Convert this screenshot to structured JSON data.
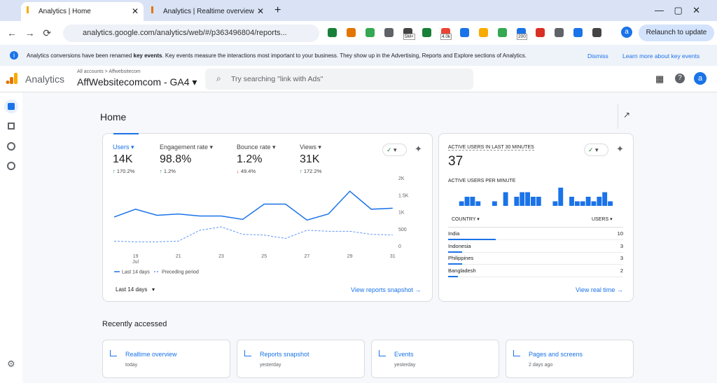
{
  "browser": {
    "tabs": [
      "Analytics | Home",
      "Analytics | Realtime overview"
    ],
    "url": "analytics.google.com/analytics/web/#/p363496804/reports...",
    "extension_badges": [
      "5M+",
      "4.0k",
      "200"
    ],
    "profile": "a",
    "relaunch": "Relaunch to update"
  },
  "banner": {
    "text_before": "Analytics conversions have been renamed ",
    "bold": "key events",
    "text_after": ". Key events measure the interactions most important to your business. They show up in the Advertising, Reports and Explore sections of Analytics.",
    "dismiss": "Dismiss",
    "learn_more": "Learn more about key events"
  },
  "header": {
    "app": "Analytics",
    "breadcrumb": "All accounts > Affwebsitecom",
    "property": "AffWebsitecomcom - GA4",
    "search_placeholder": "Try searching \"link with Ads\"",
    "profile": "a"
  },
  "page_title": "Home",
  "metrics": [
    {
      "name": "Users",
      "value": "14K",
      "change": "170.2%",
      "direction": "up"
    },
    {
      "name": "Engagement rate",
      "value": "98.8%",
      "change": "1.2%",
      "direction": "up"
    },
    {
      "name": "Bounce rate",
      "value": "1.2%",
      "change": "49.4%",
      "direction": "down"
    },
    {
      "name": "Views",
      "value": "31K",
      "change": "172.2%",
      "direction": "up"
    }
  ],
  "chart_data": {
    "type": "line",
    "categories": [
      null,
      "19",
      null,
      "21",
      null,
      "23",
      null,
      "25",
      null,
      "27",
      null,
      "29",
      null,
      "31"
    ],
    "x_sublabel": "Jul",
    "ylim": [
      0,
      2000
    ],
    "yticks": [
      0,
      500,
      {
        "value": 1000,
        "label": "1K"
      },
      {
        "value": 1500,
        "label": "1.5K"
      },
      {
        "value": 2000,
        "label": "2K"
      }
    ],
    "series": [
      {
        "name": "Last 14 days",
        "color": "#1a73e8",
        "dashed": false,
        "values": [
          970,
          1200,
          1020,
          1060,
          1000,
          1000,
          900,
          1350,
          1350,
          880,
          1060,
          1730,
          1200,
          1230
        ]
      },
      {
        "name": "Preceding period",
        "color": "#5e97f6",
        "dashed": true,
        "values": [
          260,
          240,
          240,
          260,
          580,
          680,
          460,
          440,
          340,
          580,
          550,
          550,
          460,
          440
        ]
      }
    ]
  },
  "date_range": "Last 14 days",
  "view_snapshot": "View reports snapshot",
  "realtime": {
    "title": "ACTIVE USERS IN LAST 30 MINUTES",
    "value": "37",
    "per_minute_title": "ACTIVE USERS PER MINUTE",
    "per_minute": {
      "type": "bar",
      "color": "#1a73e8",
      "values": [
        0,
        0,
        1,
        2,
        2,
        1,
        0,
        0,
        1,
        0,
        3,
        0,
        2,
        3,
        3,
        2,
        2,
        0,
        0,
        1,
        4,
        0,
        2,
        1,
        1,
        2,
        1,
        2,
        3,
        1
      ],
      "ylim": [
        0,
        4
      ]
    },
    "table": {
      "columns": [
        "COUNTRY",
        "USERS"
      ],
      "rows": [
        {
          "country": "India",
          "users": 10
        },
        {
          "country": "Indonesia",
          "users": 3
        },
        {
          "country": "Philippines",
          "users": 3
        },
        {
          "country": "Bangladesh",
          "users": 2
        }
      ]
    },
    "view_realtime": "View real time"
  },
  "recent": {
    "title": "Recently accessed",
    "cards": [
      {
        "title": "Realtime overview",
        "time": "today"
      },
      {
        "title": "Reports snapshot",
        "time": "yesterday"
      },
      {
        "title": "Events",
        "time": "yesterday"
      },
      {
        "title": "Pages and screens",
        "time": "2 days ago"
      }
    ]
  }
}
